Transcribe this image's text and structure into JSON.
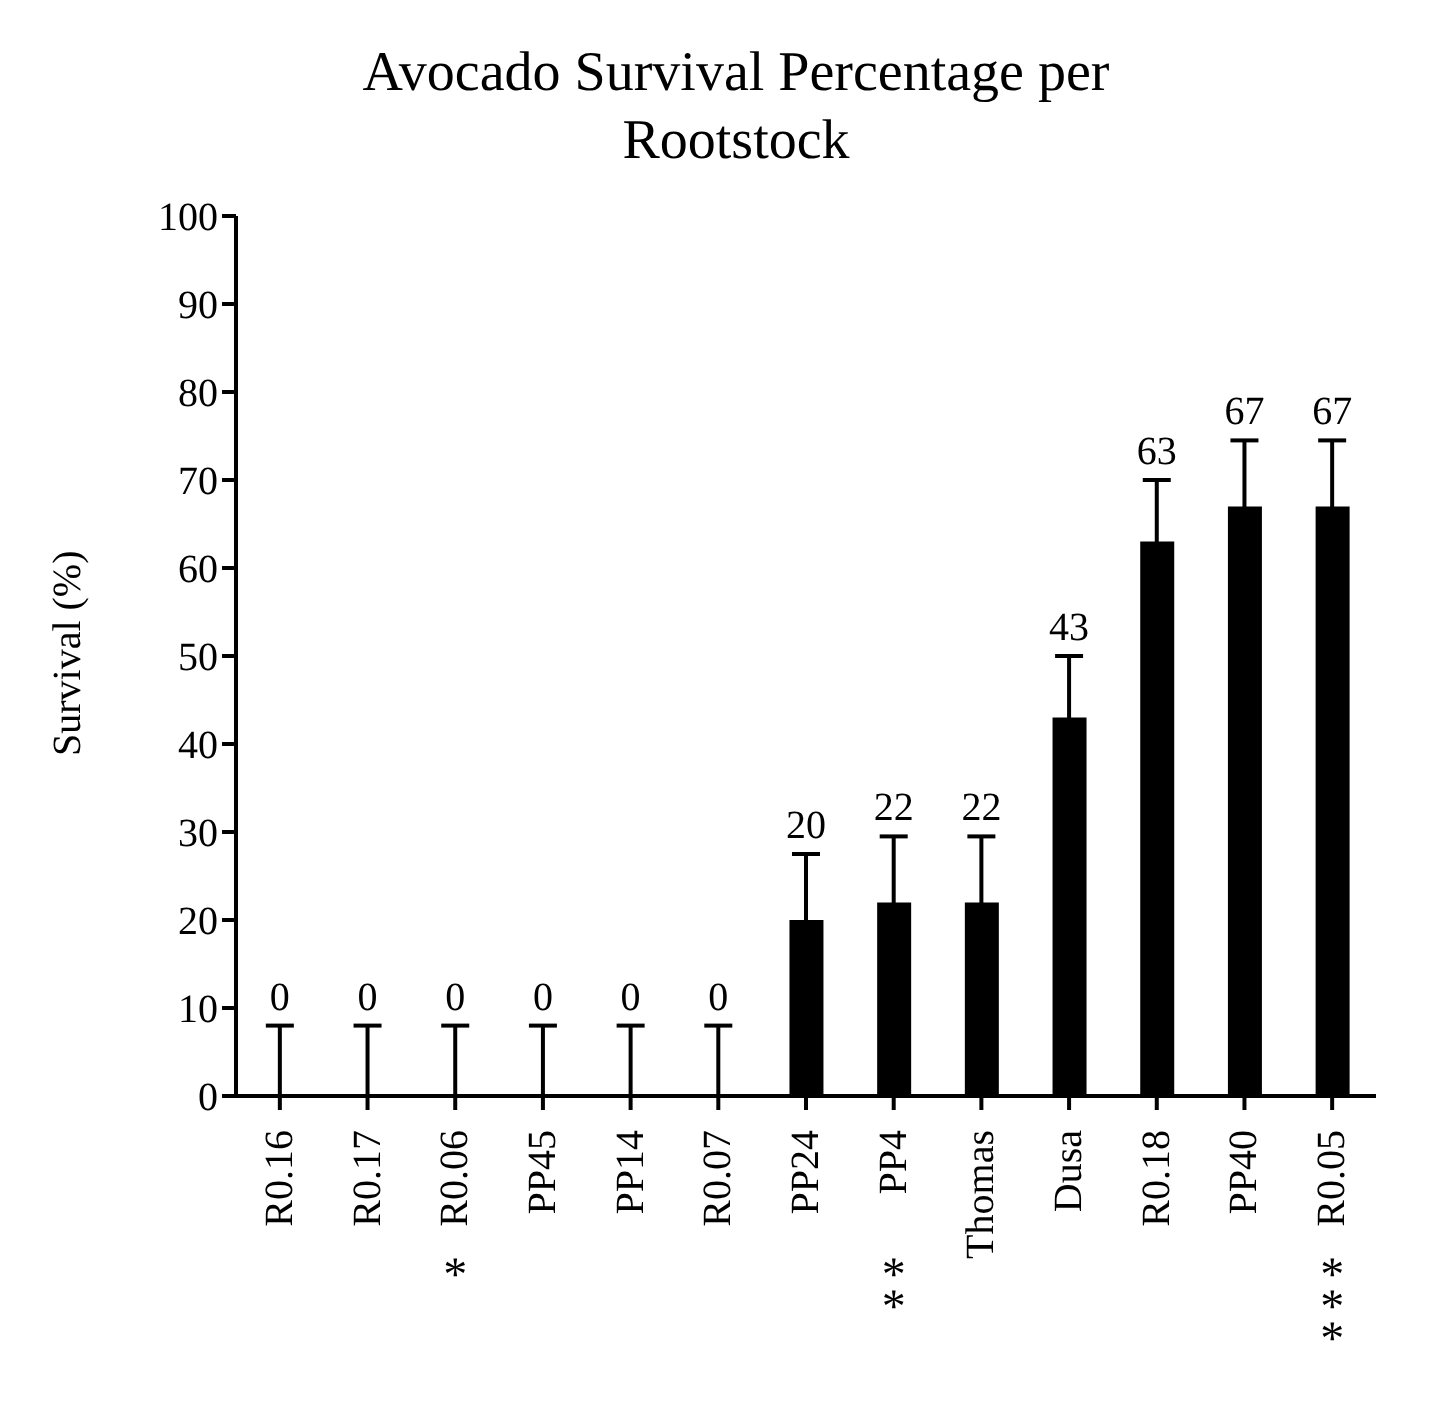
{
  "chart_data": {
    "type": "bar",
    "title": "Avocado Survival Percentage per Rootstock",
    "ylabel": "Survival (%)",
    "categories": [
      "R0.16",
      "R0.17",
      "R0.06",
      "PP45",
      "PP14",
      "R0.07",
      "PP24",
      "PP4",
      "Thomas",
      "Dusa",
      "R0.18",
      "PP40",
      "R0.05"
    ],
    "values": [
      0,
      0,
      0,
      0,
      0,
      0,
      20,
      22,
      22,
      43,
      63,
      67,
      67
    ],
    "errors": [
      [
        0,
        8
      ],
      [
        0,
        8
      ],
      [
        0,
        8
      ],
      [
        0,
        8
      ],
      [
        0,
        8
      ],
      [
        0,
        8
      ],
      7.5,
      7.5,
      7.5,
      7,
      7,
      7.5,
      7.5
    ],
    "color": "#000000",
    "ylim": [
      0,
      100
    ],
    "yticks": [
      0,
      10,
      20,
      30,
      40,
      50,
      60,
      70,
      80,
      90,
      100
    ],
    "grid": false,
    "data_labels": true,
    "annotations": [
      "*",
      "**",
      "***"
    ]
  }
}
